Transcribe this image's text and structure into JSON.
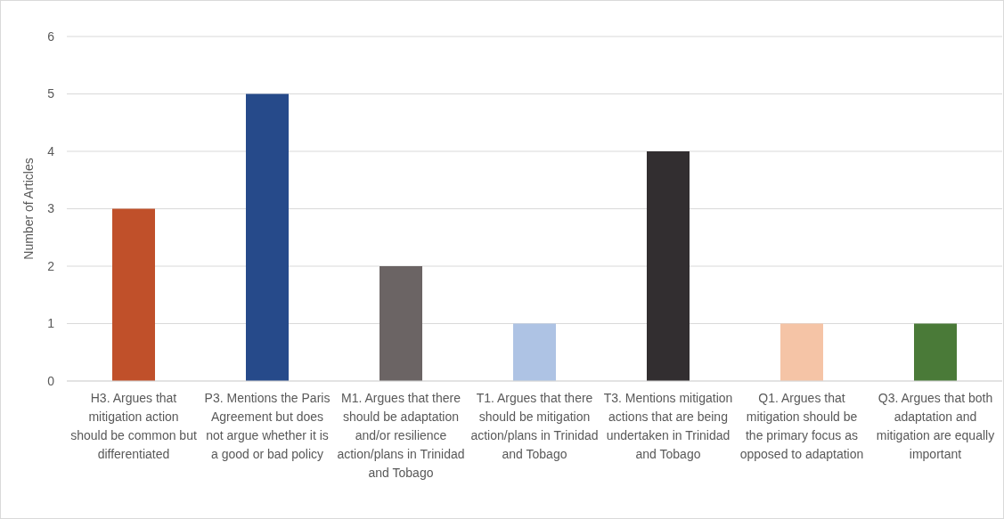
{
  "chart_data": {
    "type": "bar",
    "ylabel": "Number of Articles",
    "categories": [
      "H3. Argues that mitigation action should be common but differentiated",
      "P3. Mentions the Paris Agreement but does not argue whether it is a good or bad policy",
      "M1. Argues that there should be adaptation and/or resilience action/plans in Trinidad and Tobago",
      "T1. Argues that there should be mitigation action/plans in Trinidad and Tobago",
      "T3. Mentions mitigation actions that are being undertaken in Trinidad and Tobago",
      "Q1. Argues that mitigation should be the primary focus as opposed to adaptation",
      "Q3. Argues that both adaptation and mitigation are equally important"
    ],
    "values": [
      3,
      5,
      2,
      1,
      4,
      1,
      1
    ],
    "colors": [
      "#c0502a",
      "#264a8a",
      "#6b6464",
      "#aec3e4",
      "#322e30",
      "#f5c4a6",
      "#4a7a38"
    ],
    "ylim": [
      0,
      6
    ],
    "yticks": [
      0,
      1,
      2,
      3,
      4,
      5,
      6
    ],
    "grid": "y"
  }
}
